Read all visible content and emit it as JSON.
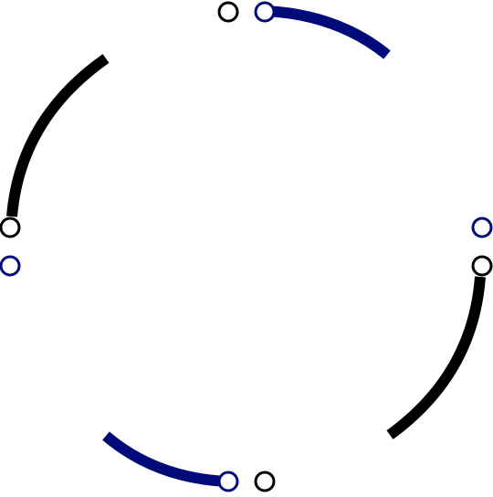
{
  "colors": {
    "background": "#ffffff",
    "black": "#000000",
    "navy": "#000a78"
  },
  "arcs": [
    {
      "id": "top-right-arc",
      "color": "navy"
    },
    {
      "id": "top-left-arc",
      "color": "black"
    },
    {
      "id": "bottom-left-arc",
      "color": "navy"
    },
    {
      "id": "bottom-right-arc",
      "color": "black"
    }
  ],
  "handles": [
    {
      "id": "top-black",
      "color": "black"
    },
    {
      "id": "top-navy",
      "color": "navy"
    },
    {
      "id": "left-black",
      "color": "black"
    },
    {
      "id": "left-navy",
      "color": "navy"
    },
    {
      "id": "right-navy",
      "color": "navy"
    },
    {
      "id": "right-black",
      "color": "black"
    },
    {
      "id": "bottom-navy",
      "color": "navy"
    },
    {
      "id": "bottom-black",
      "color": "black"
    }
  ]
}
